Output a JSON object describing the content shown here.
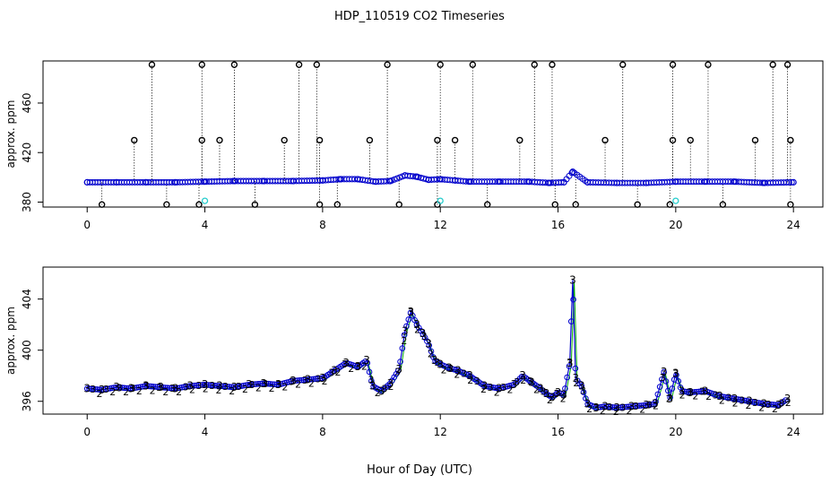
{
  "title": "HDP_110519  CO2 Timeseries",
  "xlabel": "Hour of Day (UTC)",
  "chart_data": [
    {
      "type": "scatter",
      "panel": "top",
      "ylabel": "approx. ppm",
      "xlim": [
        -1.5,
        25
      ],
      "ylim": [
        376,
        494
      ],
      "x_ticks": [
        0,
        4,
        8,
        12,
        16,
        20,
        24
      ],
      "y_ticks": [
        380,
        420,
        460
      ],
      "colors": {
        "baseline": "#0000cc",
        "high_outlier": "#000000",
        "low_outlier": "#000000",
        "cyan_points": "#22cccc",
        "green": "#00aa00",
        "stem": "#000000"
      },
      "baseline_series": {
        "x": [
          0,
          1,
          2,
          3,
          4,
          5,
          6,
          7,
          8,
          8.6,
          9.2,
          9.8,
          10.3,
          10.8,
          11.2,
          11.6,
          12,
          12.5,
          13,
          14,
          15,
          15.7,
          16.2,
          16.5,
          17,
          18,
          19,
          20,
          21,
          22,
          23,
          24
        ],
        "y": [
          396,
          396,
          396,
          396,
          396.5,
          397,
          397,
          397,
          397.5,
          398.5,
          398.5,
          396.5,
          397,
          401.5,
          400.5,
          398,
          398.5,
          397.5,
          396.5,
          396.5,
          396.5,
          395.5,
          396,
          404.5,
          396,
          395.5,
          395.5,
          396.5,
          396.5,
          396.5,
          395.5,
          396
        ]
      },
      "high_outliers": {
        "x": [
          2.2,
          3.9,
          5.0,
          7.2,
          7.8,
          10.2,
          12.0,
          13.1,
          15.2,
          15.8,
          18.2,
          19.9,
          21.1,
          23.3,
          23.8
        ],
        "y": [
          491,
          491,
          491,
          491,
          491,
          491,
          491,
          491,
          491,
          491,
          491,
          491,
          491,
          491,
          491
        ]
      },
      "mid_outliers": {
        "x": [
          1.6,
          3.9,
          4.5,
          6.7,
          7.9,
          9.6,
          11.9,
          12.5,
          14.7,
          17.6,
          19.9,
          20.5,
          22.7,
          23.9
        ],
        "y": [
          430,
          430,
          430,
          430,
          430,
          430,
          430,
          430,
          430,
          430,
          430,
          430,
          430,
          430
        ]
      },
      "low_outliers": {
        "x": [
          0.5,
          2.7,
          3.8,
          5.7,
          7.9,
          8.5,
          10.6,
          11.9,
          13.6,
          15.9,
          16.6,
          18.7,
          19.8,
          21.6,
          23.9
        ],
        "y": [
          378,
          378,
          378,
          378,
          378,
          378,
          378,
          378,
          378,
          378,
          378,
          378,
          378,
          378,
          378
        ]
      },
      "cyan_points": {
        "x": [
          4.0,
          12.0,
          20.0
        ],
        "y": [
          381,
          381,
          381
        ]
      }
    },
    {
      "type": "scatter",
      "panel": "bottom",
      "ylabel": "approx. ppm",
      "xlim": [
        -1.5,
        25
      ],
      "ylim": [
        395,
        406.5
      ],
      "x_ticks": [
        0,
        4,
        8,
        12,
        16,
        20,
        24
      ],
      "y_ticks": [
        396,
        400,
        404
      ],
      "series_labels": [
        "3",
        "2"
      ],
      "colors": {
        "primary": "#0000cc",
        "secondary": "#00aa00"
      },
      "series": [
        {
          "values_x": [
            0,
            0.5,
            1,
            1.5,
            2,
            2.5,
            3,
            3.5,
            4,
            4.5,
            5,
            5.5,
            6,
            6.5,
            7,
            7.5,
            8,
            8.4,
            8.8,
            9.2,
            9.5,
            9.7,
            10,
            10.3,
            10.6,
            10.8,
            11,
            11.2,
            11.4,
            11.6,
            11.8,
            12,
            12.3,
            12.6,
            13,
            13.5,
            14,
            14.5,
            14.8,
            15.1,
            15.4,
            15.6,
            15.8,
            16,
            16.2,
            16.4,
            16.5,
            16.6,
            16.8,
            17,
            17.3,
            17.6,
            18,
            18.5,
            19,
            19.3,
            19.6,
            19.8,
            20,
            20.2,
            20.5,
            21,
            21.5,
            22,
            22.5,
            23,
            23.5,
            23.8
          ],
          "values_y": [
            397.0,
            396.9,
            397.1,
            397.0,
            397.2,
            397.1,
            397.0,
            397.2,
            397.3,
            397.2,
            397.1,
            397.3,
            397.4,
            397.3,
            397.6,
            397.7,
            397.8,
            398.4,
            399.0,
            398.7,
            399.2,
            397.2,
            396.8,
            397.4,
            398.5,
            401.5,
            403.0,
            402.0,
            401.3,
            400.5,
            399.2,
            398.9,
            398.6,
            398.4,
            398.0,
            397.2,
            397.0,
            397.3,
            398.0,
            397.5,
            397.0,
            396.6,
            396.3,
            396.7,
            396.5,
            399.0,
            405.5,
            397.8,
            397.2,
            395.8,
            395.5,
            395.6,
            395.5,
            395.6,
            395.7,
            395.8,
            398.3,
            396.2,
            398.2,
            396.8,
            396.7,
            396.8,
            396.4,
            396.2,
            396.0,
            395.8,
            395.7,
            396.2
          ]
        }
      ],
      "annotations": [
        "3",
        "3",
        "3",
        "3",
        "2",
        "2",
        "2"
      ]
    }
  ]
}
